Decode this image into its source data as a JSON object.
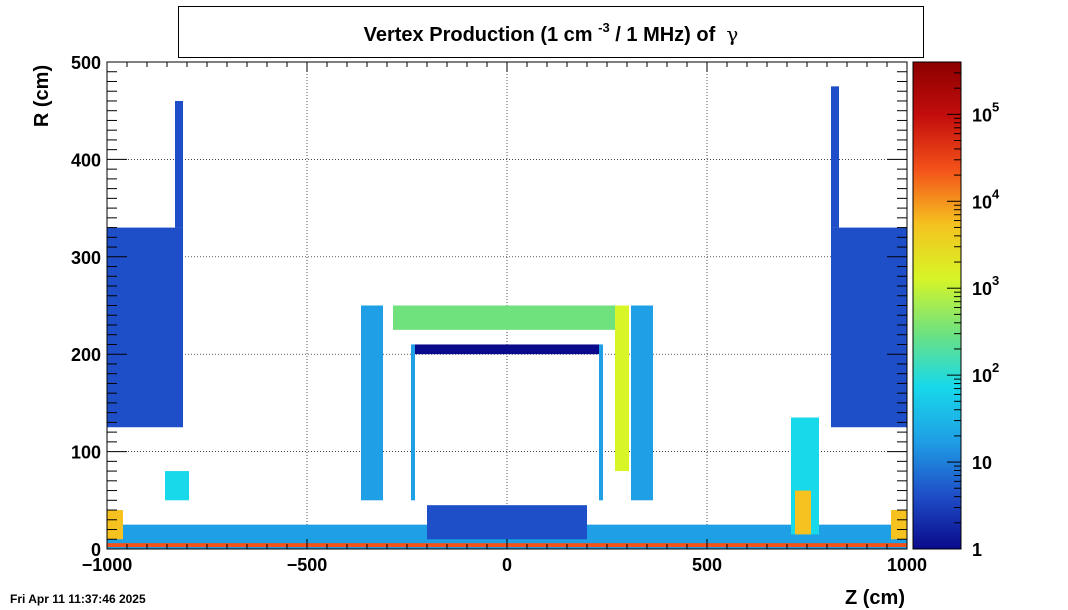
{
  "title": {
    "pre": "Vertex Production (1 cm",
    "exp": "-3",
    "post": "/ 1 MHz) of",
    "particle": "γ"
  },
  "timestamp": "Fri Apr 11 11:37:46 2025",
  "chart_data": {
    "type": "heatmap",
    "title": "Vertex Production (1 cm^-3 / 1 MHz) of γ",
    "xlabel": "Z (cm)",
    "ylabel": "R (cm)",
    "xlim": [
      -1000,
      1000
    ],
    "ylim": [
      0,
      500
    ],
    "x_ticks": [
      -1000,
      -500,
      0,
      500,
      1000
    ],
    "x_tick_labels": [
      "−1000",
      "−500",
      "0",
      "500",
      "1000"
    ],
    "y_ticks": [
      0,
      100,
      200,
      300,
      400,
      500
    ],
    "y_tick_labels": [
      "0",
      "100",
      "200",
      "300",
      "400",
      "500"
    ],
    "grid": true,
    "colorbar": {
      "scale": "log",
      "range": [
        1,
        400000
      ],
      "ticks": [
        1,
        10,
        100,
        1000,
        10000,
        100000
      ],
      "tick_labels": [
        "1",
        "10",
        "10^2",
        "10^3",
        "10^4",
        "10^5"
      ],
      "colormap": [
        "#0a0a8c",
        "#1f4fc8",
        "#1f9fe6",
        "#17d9ea",
        "#6fe27e",
        "#d7f527",
        "#f5c21f",
        "#f3531a",
        "#c40d0d",
        "#8c0000"
      ]
    },
    "regions": [
      {
        "z": [
          -1000,
          -810
        ],
        "r": [
          125,
          330
        ],
        "value": 6
      },
      {
        "z": [
          -830,
          -810
        ],
        "r": [
          330,
          460
        ],
        "value": 4
      },
      {
        "z": [
          810,
          1000
        ],
        "r": [
          125,
          330
        ],
        "value": 6
      },
      {
        "z": [
          810,
          830
        ],
        "r": [
          330,
          475
        ],
        "value": 4
      },
      {
        "z": [
          -365,
          -310
        ],
        "r": [
          50,
          250
        ],
        "value": 30
      },
      {
        "z": [
          310,
          365
        ],
        "r": [
          50,
          250
        ],
        "value": 30
      },
      {
        "z": [
          -285,
          285
        ],
        "r": [
          225,
          250
        ],
        "value": 500
      },
      {
        "z": [
          -235,
          235
        ],
        "r": [
          200,
          210
        ],
        "value": 2
      },
      {
        "z": [
          -240,
          -230
        ],
        "r": [
          50,
          210
        ],
        "value": 20
      },
      {
        "z": [
          230,
          240
        ],
        "r": [
          50,
          210
        ],
        "value": 20
      },
      {
        "z": [
          270,
          305
        ],
        "r": [
          80,
          250
        ],
        "value": 1500
      },
      {
        "z": [
          -1000,
          1000
        ],
        "r": [
          0,
          25
        ],
        "value": 30
      },
      {
        "z": [
          -1000,
          -960
        ],
        "r": [
          10,
          40
        ],
        "value": 3000
      },
      {
        "z": [
          960,
          1000
        ],
        "r": [
          10,
          40
        ],
        "value": 3000
      },
      {
        "z": [
          710,
          780
        ],
        "r": [
          15,
          135
        ],
        "value": 40
      },
      {
        "z": [
          720,
          760
        ],
        "r": [
          15,
          60
        ],
        "value": 5000
      },
      {
        "z": [
          -855,
          -795
        ],
        "r": [
          50,
          80
        ],
        "value": 50
      },
      {
        "z": [
          -200,
          200
        ],
        "r": [
          10,
          45
        ],
        "value": 4
      },
      {
        "z": [
          -1000,
          1000
        ],
        "r": [
          2,
          6
        ],
        "value": 20000
      }
    ]
  }
}
